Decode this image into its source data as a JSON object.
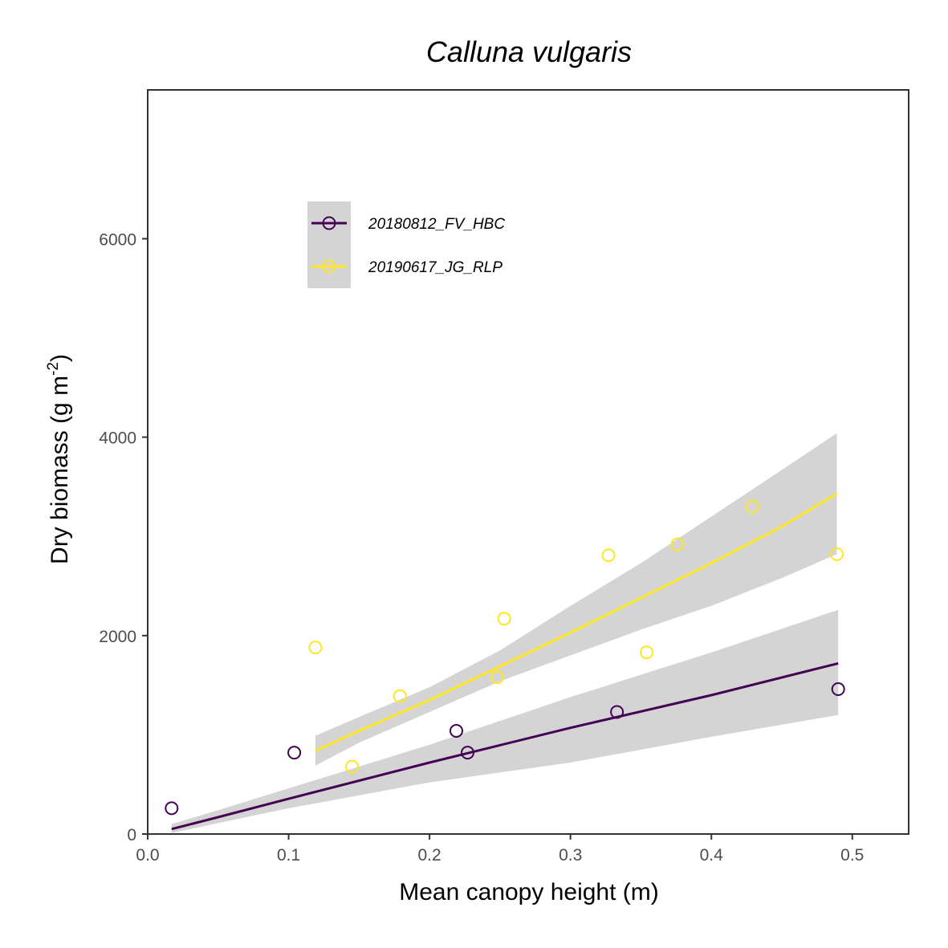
{
  "chart_data": {
    "type": "scatter",
    "title": "Calluna vulgaris",
    "xlabel": "Mean canopy height (m)",
    "ylabel": {
      "text": "Dry biomass (g m",
      "superscript": "-2",
      "close": ")"
    },
    "xlim": [
      0,
      0.54
    ],
    "ylim": [
      0,
      7500
    ],
    "x_ticks": [
      0.0,
      0.1,
      0.2,
      0.3,
      0.4,
      0.5
    ],
    "x_tick_labels": [
      "0.0",
      "0.1",
      "0.2",
      "0.3",
      "0.4",
      "0.5"
    ],
    "y_ticks": [
      0,
      2000,
      4000,
      6000
    ],
    "y_tick_labels": [
      "0",
      "2000",
      "4000",
      "6000"
    ],
    "grid": false,
    "legend_position": "top-left inside",
    "series": [
      {
        "name": "20180812_FV_HBC",
        "color": "#440154",
        "marker": "open-circle",
        "points": [
          {
            "x": 0.017,
            "y": 260
          },
          {
            "x": 0.104,
            "y": 820
          },
          {
            "x": 0.219,
            "y": 1040
          },
          {
            "x": 0.227,
            "y": 820
          },
          {
            "x": 0.333,
            "y": 1230
          },
          {
            "x": 0.49,
            "y": 1460
          }
        ],
        "fit": {
          "x": [
            0.017,
            0.05,
            0.1,
            0.2,
            0.3,
            0.4,
            0.49
          ],
          "y": [
            50,
            170,
            355,
            720,
            1070,
            1400,
            1720
          ],
          "lower": [
            10,
            110,
            260,
            520,
            720,
            980,
            1200
          ],
          "upper": [
            100,
            240,
            460,
            900,
            1380,
            1830,
            2260
          ]
        }
      },
      {
        "name": "20190617_JG_RLP",
        "color": "#fde725",
        "marker": "open-circle",
        "points": [
          {
            "x": 0.119,
            "y": 1880
          },
          {
            "x": 0.145,
            "y": 680
          },
          {
            "x": 0.179,
            "y": 1390
          },
          {
            "x": 0.248,
            "y": 1580
          },
          {
            "x": 0.253,
            "y": 2170
          },
          {
            "x": 0.327,
            "y": 2810
          },
          {
            "x": 0.354,
            "y": 1830
          },
          {
            "x": 0.376,
            "y": 2920
          },
          {
            "x": 0.429,
            "y": 3300
          },
          {
            "x": 0.489,
            "y": 2820
          }
        ],
        "fit": {
          "x": [
            0.119,
            0.15,
            0.2,
            0.25,
            0.3,
            0.35,
            0.4,
            0.45,
            0.489
          ],
          "y": [
            840,
            1040,
            1350,
            1690,
            2030,
            2380,
            2730,
            3100,
            3430
          ],
          "lower": [
            690,
            920,
            1230,
            1540,
            1800,
            2060,
            2300,
            2580,
            2820
          ],
          "upper": [
            990,
            1180,
            1480,
            1850,
            2300,
            2730,
            3200,
            3670,
            4040
          ]
        }
      }
    ]
  }
}
